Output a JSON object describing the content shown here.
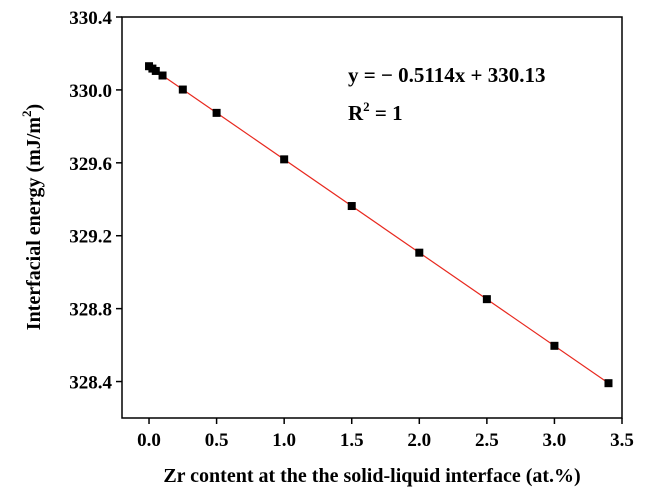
{
  "chart_data": {
    "type": "scatter",
    "title": "",
    "xlabel": "Zr content at the the solid-liquid interface (at.%)",
    "ylabel_main": "Interfacial energy (mJ/m",
    "ylabel_sup": "2",
    "ylabel_close": ")",
    "xlim": [
      -0.2,
      3.5
    ],
    "ylim": [
      328.2,
      330.4
    ],
    "x_ticks": [
      "0.0",
      "0.5",
      "1.0",
      "1.5",
      "2.0",
      "2.5",
      "3.0",
      "3.5"
    ],
    "y_ticks": [
      "328.4",
      "328.8",
      "329.2",
      "329.6",
      "330.0",
      "330.4"
    ],
    "grid": false,
    "series": [
      {
        "marker": "square",
        "color": "#000000",
        "x": [
          0.0,
          0.025,
          0.05,
          0.1,
          0.25,
          0.5,
          1.0,
          1.5,
          2.0,
          2.5,
          3.0,
          3.4
        ],
        "y": [
          330.13,
          330.117,
          330.104,
          330.079,
          330.002,
          329.874,
          329.619,
          329.363,
          329.107,
          328.852,
          328.596,
          328.391
        ]
      }
    ],
    "fit_line": {
      "color": "#e8281e",
      "slope": -0.5114,
      "intercept": 330.13,
      "x_range": [
        0.0,
        3.4
      ]
    },
    "annotations": {
      "equation": "y = − 0.5114x + 330.13",
      "r2_prefix": "R",
      "r2_sup": "2",
      "r2_suffix": " = 1"
    }
  }
}
